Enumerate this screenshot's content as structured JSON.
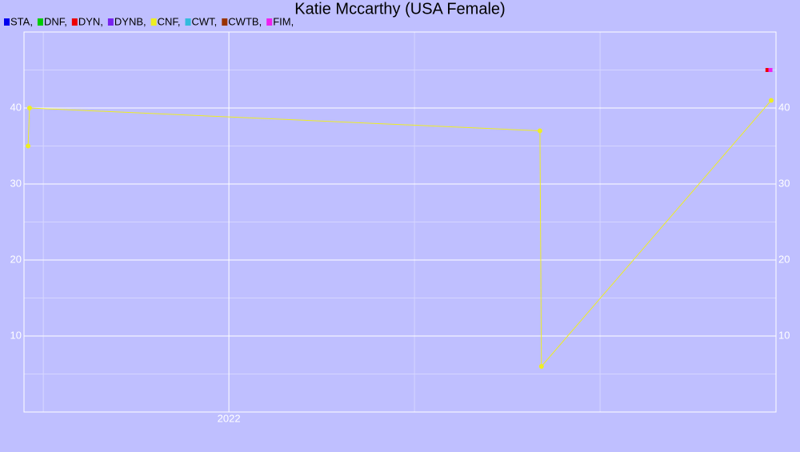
{
  "chart_data": {
    "type": "line",
    "title": "Katie Mccarthy (USA Female)",
    "xlim": [
      2021.448,
      2023.474
    ],
    "xticks": [
      {
        "value": 2022,
        "label": "2022"
      }
    ],
    "xminor": [
      2021.5,
      2022.5,
      2023
    ],
    "ylim": [
      0,
      50
    ],
    "yticks": [
      10,
      20,
      30,
      40
    ],
    "yminor": [
      5,
      15,
      25,
      35,
      45
    ],
    "grid": true,
    "series": [
      {
        "name": "STA,",
        "color": "#0000ee",
        "x": [],
        "values": []
      },
      {
        "name": "DNF,",
        "color": "#00cc00",
        "x": [],
        "values": []
      },
      {
        "name": "DYN,",
        "color": "#ee0000",
        "x": [
          2023.451
        ],
        "values": [
          45
        ]
      },
      {
        "name": "DYNB,",
        "color": "#7722ee",
        "x": [],
        "values": []
      },
      {
        "name": "CNF,",
        "color": "#eeee22",
        "x": [
          2021.459,
          2021.463,
          2022.838,
          2022.842,
          2023.461
        ],
        "values": [
          35,
          40,
          37,
          6,
          41
        ]
      },
      {
        "name": "CWT,",
        "color": "#33bbdd",
        "x": [],
        "values": []
      },
      {
        "name": "CWTB,",
        "color": "#993300",
        "x": [],
        "values": []
      },
      {
        "name": "FIM,",
        "color": "#ee22ee",
        "x": [
          2023.459
        ],
        "values": [
          45
        ]
      }
    ]
  }
}
